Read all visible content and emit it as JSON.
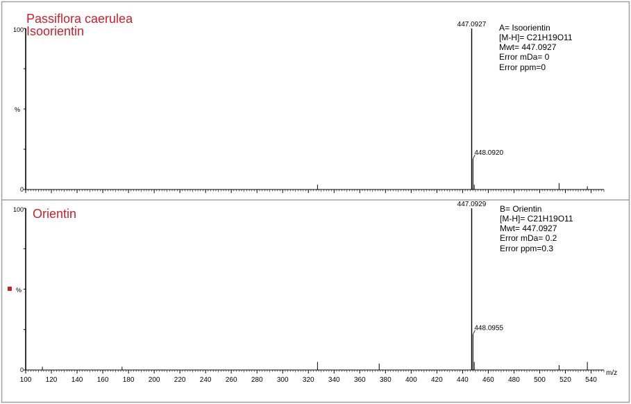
{
  "colors": {
    "border": "#a0a0a0",
    "title": "#c8202f",
    "axis": "#000000",
    "marker": "#c8202f"
  },
  "chart_data": [
    {
      "type": "line",
      "subtype": "mass-spectrum-stick",
      "title_lines": [
        "Passiflora caerulea",
        "Isoorientin"
      ],
      "ylabel": "%",
      "ytick_labels": [
        "0",
        "100"
      ],
      "xlim": [
        100,
        550
      ],
      "ylim": [
        0,
        100
      ],
      "annotation_lines": [
        "A= Isoorientin",
        "[M-H]= C21H19O11",
        "Mwt= 447.0927",
        "Error mDa= 0",
        "Error ppm=0"
      ],
      "peaks": [
        {
          "mz": 447.0927,
          "intensity": 100,
          "label": "447.0927"
        },
        {
          "mz": 448.092,
          "intensity": 19,
          "label": "448.0920"
        },
        {
          "mz": 449.1,
          "intensity": 3
        },
        {
          "mz": 327.1,
          "intensity": 3
        },
        {
          "mz": 515.1,
          "intensity": 4
        },
        {
          "mz": 537.1,
          "intensity": 2
        }
      ]
    },
    {
      "type": "line",
      "subtype": "mass-spectrum-stick",
      "title_lines": [
        "Orientin"
      ],
      "ylabel": "%",
      "ytick_labels": [
        "0",
        "100"
      ],
      "xlabel": "m/z",
      "xtick_labels": [
        "100",
        "120",
        "140",
        "160",
        "180",
        "200",
        "220",
        "240",
        "260",
        "280",
        "300",
        "320",
        "340",
        "360",
        "380",
        "400",
        "420",
        "440",
        "460",
        "480",
        "500",
        "520",
        "540"
      ],
      "xlim": [
        100,
        550
      ],
      "ylim": [
        0,
        100
      ],
      "annotation_lines": [
        "B= Orientin",
        "[M-H]= C21H19O11",
        "Mwt= 447.0927",
        "Error mDa= 0.2",
        "Error ppm=0.3"
      ],
      "peaks": [
        {
          "mz": 447.0929,
          "intensity": 100,
          "label": "447.0929"
        },
        {
          "mz": 448.0955,
          "intensity": 22,
          "label": "448.0955"
        },
        {
          "mz": 449.1,
          "intensity": 5
        },
        {
          "mz": 327.1,
          "intensity": 5
        },
        {
          "mz": 375.1,
          "intensity": 4
        },
        {
          "mz": 113.0,
          "intensity": 2
        },
        {
          "mz": 175.0,
          "intensity": 2
        },
        {
          "mz": 515.1,
          "intensity": 3
        },
        {
          "mz": 537.1,
          "intensity": 5
        }
      ]
    }
  ]
}
